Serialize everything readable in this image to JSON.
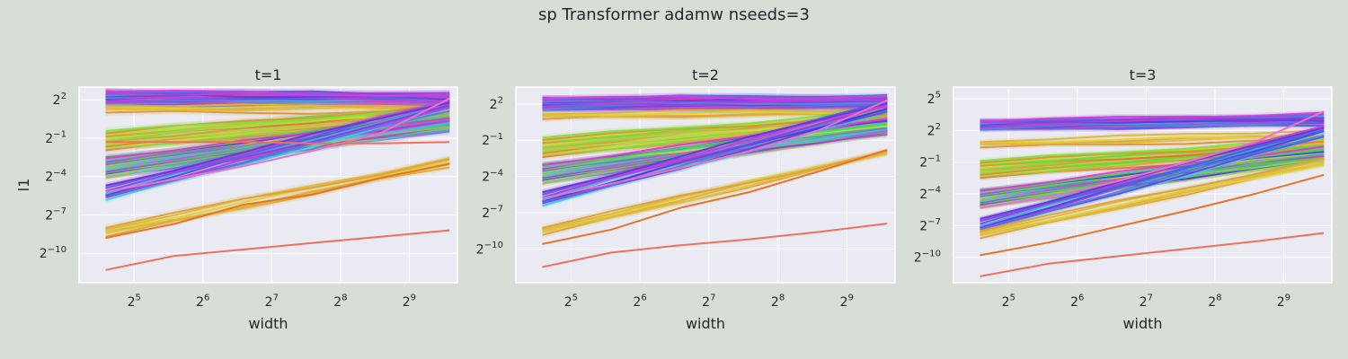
{
  "figure": {
    "title": "sp Transformer adamw nseeds=3"
  },
  "colors": {
    "background": "#d8ddd6",
    "plot_bg": "#eaeaf2",
    "grid": "#ffffff",
    "text": "#262626"
  },
  "chart_data": [
    {
      "type": "line",
      "title": "t=1",
      "xlabel": "width",
      "ylabel": "l1",
      "xscale": "log2",
      "yscale": "log2",
      "x": [
        24,
        48,
        96,
        192,
        384,
        768
      ],
      "xticks": [
        32,
        64,
        128,
        256,
        512
      ],
      "xtick_labels": [
        "2^5",
        "2^6",
        "2^7",
        "2^8",
        "2^9"
      ],
      "yticks_exp": [
        2,
        -1,
        -4,
        -7,
        -10
      ],
      "ytick_labels": [
        "2^2",
        "2^-1",
        "2^-4",
        "2^-7",
        "2^-10"
      ],
      "xlim_exp": [
        4.2,
        9.7
      ],
      "ylim_exp": [
        -12.3,
        3.0
      ],
      "grid": true,
      "legend": false,
      "series_count": 100,
      "series_color_map": "husl",
      "bands": [
        {
          "start_exp": 2.1,
          "end_exp": 2.0,
          "spread": 2.6,
          "n": 25,
          "hue": [
            190,
            320
          ]
        },
        {
          "start_exp": 1.3,
          "end_exp": 1.3,
          "spread": 1.2,
          "n": 5,
          "hue": [
            30,
            60
          ]
        },
        {
          "start_exp": -1.2,
          "end_exp": 1.0,
          "spread": 3.0,
          "n": 20,
          "hue": [
            15,
            120
          ]
        },
        {
          "start_exp": -3.3,
          "end_exp": 0.2,
          "spread": 3.2,
          "n": 30,
          "hue": [
            40,
            330
          ]
        },
        {
          "start_exp": -5.3,
          "end_exp": 1.6,
          "spread": 2.2,
          "n": 10,
          "hue": [
            180,
            310
          ]
        },
        {
          "start_exp": -8.3,
          "end_exp": -3.0,
          "spread": 1.6,
          "n": 6,
          "hue": [
            35,
            60
          ]
        }
      ],
      "special_series": [
        {
          "y_exp": [
            -8.8,
            -7.7,
            -6.2,
            -5.4,
            -4.1,
            -3.0
          ],
          "color": "#e8742c"
        },
        {
          "y_exp": [
            -11.3,
            -10.2,
            -9.7,
            -9.2,
            -8.7,
            -8.2
          ],
          "color": "#f07060"
        },
        {
          "y_exp": [
            -5.2,
            -4.2,
            -3.2,
            -2.0,
            -0.6,
            2.1
          ],
          "color": "#ee6fc9"
        },
        {
          "y_exp": [
            -1.3,
            -1.3,
            -1.3,
            -1.4,
            -1.4,
            -1.3
          ],
          "color": "#f07060"
        }
      ]
    },
    {
      "type": "line",
      "title": "t=2",
      "xlabel": "width",
      "ylabel": "",
      "xscale": "log2",
      "yscale": "log2",
      "x": [
        24,
        48,
        96,
        192,
        384,
        768
      ],
      "xticks": [
        32,
        64,
        128,
        256,
        512
      ],
      "xtick_labels": [
        "2^5",
        "2^6",
        "2^7",
        "2^8",
        "2^9"
      ],
      "yticks_exp": [
        2,
        -1,
        -4,
        -7,
        -10
      ],
      "ytick_labels": [
        "2^2",
        "2^-1",
        "2^-4",
        "2^-7",
        "2^-10"
      ],
      "xlim_exp": [
        4.2,
        9.7
      ],
      "ylim_exp": [
        -12.8,
        3.4
      ],
      "grid": true,
      "legend": false,
      "series_count": 100,
      "series_color_map": "husl",
      "bands": [
        {
          "start_exp": 2.0,
          "end_exp": 2.1,
          "spread": 2.2,
          "n": 25,
          "hue": [
            190,
            320
          ]
        },
        {
          "start_exp": 1.0,
          "end_exp": 1.4,
          "spread": 1.0,
          "n": 5,
          "hue": [
            30,
            60
          ]
        },
        {
          "start_exp": -1.6,
          "end_exp": 0.8,
          "spread": 3.2,
          "n": 20,
          "hue": [
            15,
            120
          ]
        },
        {
          "start_exp": -3.8,
          "end_exp": 0.0,
          "spread": 3.2,
          "n": 30,
          "hue": [
            40,
            330
          ]
        },
        {
          "start_exp": -5.9,
          "end_exp": 1.8,
          "spread": 2.2,
          "n": 10,
          "hue": [
            180,
            310
          ]
        },
        {
          "start_exp": -8.5,
          "end_exp": -2.0,
          "spread": 1.4,
          "n": 6,
          "hue": [
            35,
            60
          ]
        }
      ],
      "special_series": [
        {
          "y_exp": [
            -9.6,
            -8.4,
            -6.6,
            -5.3,
            -3.6,
            -1.8
          ],
          "color": "#e8742c"
        },
        {
          "y_exp": [
            -11.5,
            -10.3,
            -9.7,
            -9.2,
            -8.6,
            -7.9
          ],
          "color": "#f07060"
        },
        {
          "y_exp": [
            -5.8,
            -4.6,
            -3.3,
            -1.9,
            -0.2,
            2.3
          ],
          "color": "#ee6fc9"
        }
      ]
    },
    {
      "type": "line",
      "title": "t=3",
      "xlabel": "width",
      "ylabel": "",
      "xscale": "log2",
      "yscale": "log2",
      "x": [
        24,
        48,
        96,
        192,
        384,
        768
      ],
      "xticks": [
        32,
        64,
        128,
        256,
        512
      ],
      "xtick_labels": [
        "2^5",
        "2^6",
        "2^7",
        "2^8",
        "2^9"
      ],
      "yticks_exp": [
        5,
        2,
        -1,
        -4,
        -7,
        -10
      ],
      "ytick_labels": [
        "2^5",
        "2^2",
        "2^-1",
        "2^-4",
        "2^-7",
        "2^-10"
      ],
      "xlim_exp": [
        4.2,
        9.7
      ],
      "ylim_exp": [
        -12.4,
        6.1
      ],
      "grid": true,
      "legend": false,
      "series_count": 100,
      "series_color_map": "husl",
      "bands": [
        {
          "start_exp": 2.5,
          "end_exp": 3.0,
          "spread": 1.8,
          "n": 25,
          "hue": [
            190,
            320
          ]
        },
        {
          "start_exp": 0.7,
          "end_exp": 1.6,
          "spread": 1.2,
          "n": 5,
          "hue": [
            30,
            60
          ]
        },
        {
          "start_exp": -1.7,
          "end_exp": 0.5,
          "spread": 3.2,
          "n": 20,
          "hue": [
            15,
            120
          ]
        },
        {
          "start_exp": -4.5,
          "end_exp": -0.3,
          "spread": 3.4,
          "n": 30,
          "hue": [
            40,
            330
          ]
        },
        {
          "start_exp": -7.0,
          "end_exp": 2.0,
          "spread": 2.4,
          "n": 10,
          "hue": [
            180,
            310
          ]
        },
        {
          "start_exp": -7.8,
          "end_exp": -1.0,
          "spread": 1.6,
          "n": 6,
          "hue": [
            35,
            60
          ]
        }
      ],
      "special_series": [
        {
          "y_exp": [
            -9.8,
            -8.6,
            -7.1,
            -5.6,
            -4.0,
            -2.2
          ],
          "color": "#e8742c"
        },
        {
          "y_exp": [
            -11.8,
            -10.6,
            -9.9,
            -9.2,
            -8.5,
            -7.7
          ],
          "color": "#f07060"
        },
        {
          "y_exp": [
            -5.3,
            -4.3,
            -2.8,
            -1.0,
            0.9,
            3.8
          ],
          "color": "#ee6fc9"
        }
      ]
    }
  ]
}
